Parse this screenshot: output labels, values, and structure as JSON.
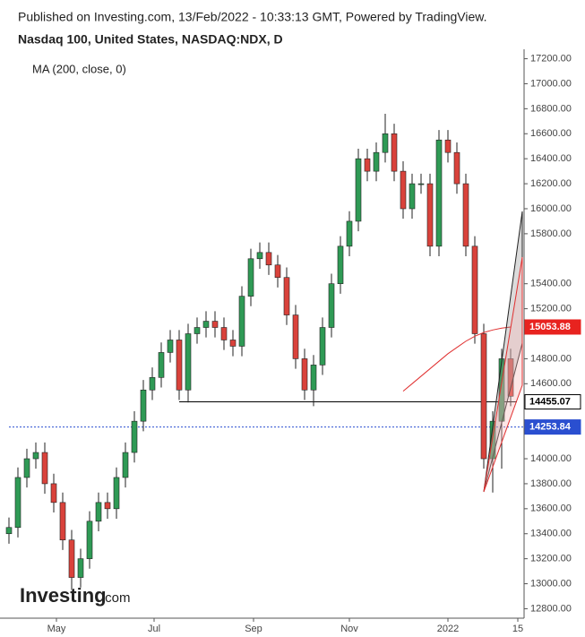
{
  "chart_data": {
    "type": "candlestick",
    "published": "Published on Investing.com, 13/Feb/2022 - 10:33:13 GMT, Powered by TradingView.",
    "title": "Nasdaq 100, United States, NASDAQ:NDX, D",
    "indicator": "MA (200, close, 0)",
    "logo": "Investing",
    "logo_suffix": ".com",
    "up_color": "#2f9a55",
    "down_color": "#d9423b",
    "open": [
      13400,
      13450,
      13850,
      14000,
      14050,
      13800,
      13650,
      13350,
      13050,
      13200,
      13500,
      13650,
      13600,
      13850,
      14050,
      14300,
      14550,
      14650,
      14850,
      14950,
      14550,
      15000,
      15050,
      15100,
      15050,
      14950,
      14900,
      15300,
      15600,
      15650,
      15550,
      15450,
      15150,
      14800,
      14550,
      14750,
      15050,
      15400,
      15700,
      15900,
      16400,
      16300,
      16450,
      16600,
      16300,
      16000,
      16200,
      16200,
      15700,
      16550,
      16450,
      16200,
      15700,
      15000,
      14000,
      14300,
      14800
    ],
    "high": [
      13530,
      13930,
      14080,
      14130,
      14130,
      13880,
      13730,
      13430,
      13280,
      13580,
      13730,
      13730,
      13930,
      14130,
      14380,
      14630,
      14730,
      14930,
      15030,
      15030,
      15080,
      15130,
      15180,
      15180,
      15130,
      15030,
      15380,
      15680,
      15730,
      15730,
      15630,
      15530,
      15230,
      14880,
      14830,
      15130,
      15480,
      15780,
      15980,
      16480,
      16480,
      16530,
      16760,
      16680,
      16380,
      16280,
      16280,
      16280,
      16630,
      16630,
      16530,
      16280,
      15780,
      15080,
      14380,
      14880,
      14880
    ],
    "low": [
      13320,
      13370,
      13770,
      13920,
      13720,
      13570,
      13270,
      12950,
      12970,
      13120,
      13420,
      13520,
      13520,
      13770,
      13970,
      14220,
      14470,
      14570,
      14770,
      14470,
      14450,
      14920,
      14970,
      14970,
      14870,
      14820,
      14820,
      15220,
      15520,
      15470,
      15370,
      15070,
      14720,
      14470,
      14420,
      14670,
      14970,
      15320,
      15620,
      15820,
      16220,
      16220,
      16370,
      16220,
      15920,
      15920,
      16120,
      15620,
      15620,
      16370,
      16120,
      15620,
      14920,
      13920,
      13730,
      13920,
      14420
    ],
    "close": [
      13450,
      13850,
      14000,
      14050,
      13800,
      13650,
      13350,
      13050,
      13200,
      13500,
      13650,
      13600,
      13850,
      14050,
      14300,
      14550,
      14650,
      14850,
      14950,
      14550,
      15000,
      15050,
      15100,
      15050,
      14950,
      14900,
      15300,
      15600,
      15650,
      15550,
      15450,
      15150,
      14800,
      14550,
      14750,
      15050,
      15400,
      15700,
      15900,
      16400,
      16300,
      16450,
      16600,
      16300,
      16000,
      16200,
      16200,
      15700,
      16550,
      16450,
      16200,
      15700,
      15000,
      14000,
      14300,
      14800,
      14500
    ],
    "ma": {
      "name": "MA 200",
      "color": "#e03030",
      "start": 44,
      "values": [
        14540,
        14600,
        14660,
        14720,
        14780,
        14840,
        14890,
        14940,
        14980,
        15010,
        15030,
        15045,
        15053.88
      ]
    },
    "neckline": {
      "value": 14455.07,
      "start": 19
    },
    "last_line": {
      "value": 14253.84,
      "color": "#2a4fd0"
    },
    "price_labels": [
      {
        "value": 15053.88,
        "color": "#e8231f"
      },
      {
        "value": 14455.07,
        "color": "#000000"
      },
      {
        "value": 14253.84,
        "color": "#2a4fd0"
      }
    ],
    "ylim": [
      12710,
      17290
    ],
    "yticks": [
      {
        "value": 12800,
        "label": "12800.00"
      },
      {
        "value": 13000,
        "label": "13000.00"
      },
      {
        "value": 13200,
        "label": "13200.00"
      },
      {
        "value": 13400,
        "label": "13400.00"
      },
      {
        "value": 13600,
        "label": "13600.00"
      },
      {
        "value": 13800,
        "label": "13800.00"
      },
      {
        "value": 14000,
        "label": "14000.00"
      },
      {
        "value": 14600,
        "label": "14600.00"
      },
      {
        "value": 14800,
        "label": "14800.00"
      },
      {
        "value": 15200,
        "label": "15200.00"
      },
      {
        "value": 15400,
        "label": "15400.00"
      },
      {
        "value": 15800,
        "label": "15800.00"
      },
      {
        "value": 16000,
        "label": "16000.00"
      },
      {
        "value": 16200,
        "label": "16200.00"
      },
      {
        "value": 16400,
        "label": "16400.00"
      },
      {
        "value": 16600,
        "label": "16600.00"
      },
      {
        "value": 16800,
        "label": "16800.00"
      },
      {
        "value": 17000,
        "label": "17000.00"
      },
      {
        "value": 17200,
        "label": "17200.00"
      }
    ],
    "xticks": [
      {
        "value": 5.3,
        "label": "May"
      },
      {
        "value": 16.2,
        "label": "Jul"
      },
      {
        "value": 27.3,
        "label": "Sep"
      },
      {
        "value": 38,
        "label": "Nov"
      },
      {
        "value": 49,
        "label": "2022"
      },
      {
        "value": 56.8,
        "label": "15"
      }
    ]
  }
}
